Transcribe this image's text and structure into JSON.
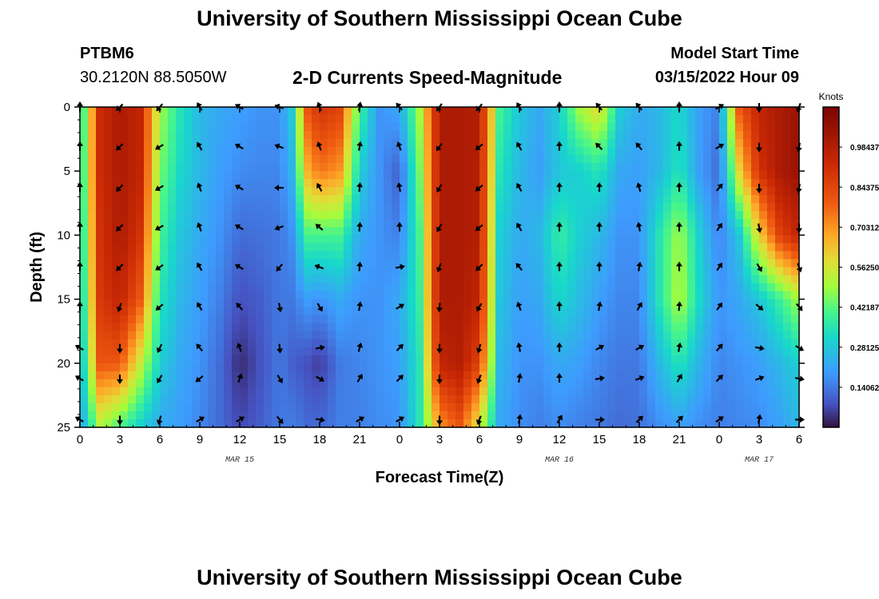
{
  "header": {
    "title": "University of Southern Mississippi Ocean Cube",
    "station_id": "PTBM6",
    "coords": "30.2120N  88.5050W",
    "chart_title": "2-D Currents Speed-Magnitude",
    "model_label": "Model Start Time",
    "model_time": "03/15/2022 Hour 09"
  },
  "footer": {
    "title": "University of Southern Mississippi Ocean Cube"
  },
  "chart_data": {
    "type": "heatmap",
    "title": "2-D Currents Speed-Magnitude",
    "xlabel": "Forecast Time(Z)",
    "ylabel": "Depth (ft)",
    "x_hours_range": [
      0,
      54
    ],
    "xlim_hours": [
      0,
      54
    ],
    "x_ticks": [
      {
        "h": 0,
        "label": "0"
      },
      {
        "h": 3,
        "label": "3"
      },
      {
        "h": 6,
        "label": "6"
      },
      {
        "h": 9,
        "label": "9"
      },
      {
        "h": 12,
        "label": "12"
      },
      {
        "h": 15,
        "label": "15"
      },
      {
        "h": 18,
        "label": "18"
      },
      {
        "h": 21,
        "label": "21"
      },
      {
        "h": 24,
        "label": "0"
      },
      {
        "h": 27,
        "label": "3"
      },
      {
        "h": 30,
        "label": "6"
      },
      {
        "h": 33,
        "label": "9"
      },
      {
        "h": 36,
        "label": "12"
      },
      {
        "h": 39,
        "label": "15"
      },
      {
        "h": 42,
        "label": "18"
      },
      {
        "h": 45,
        "label": "21"
      },
      {
        "h": 48,
        "label": "0"
      },
      {
        "h": 51,
        "label": "3"
      },
      {
        "h": 54,
        "label": "6"
      }
    ],
    "date_labels": [
      {
        "h": 12,
        "label": "MAR 15"
      },
      {
        "h": 36,
        "label": "MAR 16"
      },
      {
        "h": 51,
        "label": "MAR 17"
      }
    ],
    "ylim_ft": [
      0,
      25
    ],
    "y_ticks": [
      {
        "ft": 0,
        "label": "0"
      },
      {
        "ft": 5,
        "label": "5"
      },
      {
        "ft": 10,
        "label": "10"
      },
      {
        "ft": 15,
        "label": "15"
      },
      {
        "ft": 20,
        "label": "20"
      },
      {
        "ft": 25,
        "label": "25"
      }
    ],
    "colorbar": {
      "title": "Knots",
      "min": 0,
      "max": 1.125,
      "labels": [
        "0.98437",
        "0.84375",
        "0.70312",
        "0.56250",
        "0.42187",
        "0.28125",
        "0.14062"
      ],
      "label_values": [
        0.98437,
        0.84375,
        0.70312,
        0.5625,
        0.42187,
        0.28125,
        0.14062
      ]
    },
    "profiles": [
      {
        "h": 0.0,
        "speeds": [
          0.3,
          0.3,
          0.28,
          0.25,
          0.22,
          0.2
        ]
      },
      {
        "h": 1.5,
        "speeds": [
          0.92,
          0.92,
          0.9,
          0.88,
          0.8,
          0.5
        ]
      },
      {
        "h": 3.0,
        "speeds": [
          1.0,
          1.0,
          1.0,
          0.95,
          0.8,
          0.4
        ]
      },
      {
        "h": 4.5,
        "speeds": [
          0.95,
          0.95,
          0.9,
          0.8,
          0.55,
          0.3
        ]
      },
      {
        "h": 6.0,
        "speeds": [
          0.5,
          0.45,
          0.4,
          0.35,
          0.3,
          0.22
        ]
      },
      {
        "h": 7.5,
        "speeds": [
          0.35,
          0.32,
          0.28,
          0.25,
          0.22,
          0.2
        ]
      },
      {
        "h": 9.0,
        "speeds": [
          0.25,
          0.25,
          0.22,
          0.2,
          0.18,
          0.16
        ]
      },
      {
        "h": 10.5,
        "speeds": [
          0.22,
          0.2,
          0.18,
          0.15,
          0.12,
          0.12
        ]
      },
      {
        "h": 12.0,
        "speeds": [
          0.2,
          0.17,
          0.12,
          0.08,
          0.03,
          0.07
        ]
      },
      {
        "h": 13.5,
        "speeds": [
          0.18,
          0.16,
          0.13,
          0.1,
          0.08,
          0.1
        ]
      },
      {
        "h": 15.0,
        "speeds": [
          0.18,
          0.16,
          0.14,
          0.14,
          0.14,
          0.14
        ]
      },
      {
        "h": 16.0,
        "speeds": [
          0.3,
          0.25,
          0.18,
          0.14,
          0.1,
          0.15
        ]
      },
      {
        "h": 17.0,
        "speeds": [
          0.8,
          0.65,
          0.4,
          0.2,
          0.08,
          0.12
        ]
      },
      {
        "h": 18.0,
        "speeds": [
          0.9,
          0.75,
          0.4,
          0.18,
          0.05,
          0.12
        ]
      },
      {
        "h": 19.5,
        "speeds": [
          0.85,
          0.7,
          0.4,
          0.22,
          0.14,
          0.15
        ]
      },
      {
        "h": 21.0,
        "speeds": [
          0.4,
          0.3,
          0.22,
          0.18,
          0.16,
          0.15
        ]
      },
      {
        "h": 22.5,
        "speeds": [
          0.18,
          0.18,
          0.18,
          0.18,
          0.18,
          0.17
        ]
      },
      {
        "h": 24.0,
        "speeds": [
          0.22,
          0.1,
          0.15,
          0.22,
          0.2,
          0.18
        ]
      },
      {
        "h": 25.5,
        "speeds": [
          0.5,
          0.45,
          0.4,
          0.38,
          0.35,
          0.35
        ]
      },
      {
        "h": 27.0,
        "speeds": [
          1.0,
          1.0,
          1.0,
          1.0,
          0.95,
          0.7
        ]
      },
      {
        "h": 28.5,
        "speeds": [
          1.0,
          1.0,
          1.0,
          1.0,
          0.98,
          0.8
        ]
      },
      {
        "h": 30.0,
        "speeds": [
          0.98,
          0.98,
          0.98,
          0.95,
          0.85,
          0.55
        ]
      },
      {
        "h": 31.5,
        "speeds": [
          0.4,
          0.35,
          0.3,
          0.28,
          0.25,
          0.22
        ]
      },
      {
        "h": 33.0,
        "speeds": [
          0.28,
          0.25,
          0.22,
          0.2,
          0.18,
          0.17
        ]
      },
      {
        "h": 34.5,
        "speeds": [
          0.22,
          0.2,
          0.25,
          0.22,
          0.18,
          0.15
        ]
      },
      {
        "h": 36.0,
        "speeds": [
          0.3,
          0.28,
          0.38,
          0.32,
          0.22,
          0.17
        ]
      },
      {
        "h": 37.5,
        "speeds": [
          0.5,
          0.3,
          0.3,
          0.26,
          0.2,
          0.15
        ]
      },
      {
        "h": 39.0,
        "speeds": [
          0.6,
          0.35,
          0.25,
          0.2,
          0.16,
          0.14
        ]
      },
      {
        "h": 40.5,
        "speeds": [
          0.3,
          0.22,
          0.18,
          0.16,
          0.14,
          0.12
        ]
      },
      {
        "h": 42.0,
        "speeds": [
          0.22,
          0.2,
          0.18,
          0.16,
          0.14,
          0.13
        ]
      },
      {
        "h": 43.5,
        "speeds": [
          0.25,
          0.25,
          0.35,
          0.35,
          0.25,
          0.17
        ]
      },
      {
        "h": 45.0,
        "speeds": [
          0.32,
          0.35,
          0.5,
          0.52,
          0.35,
          0.2
        ]
      },
      {
        "h": 46.5,
        "speeds": [
          0.2,
          0.2,
          0.3,
          0.32,
          0.24,
          0.17
        ]
      },
      {
        "h": 48.0,
        "speeds": [
          0.15,
          0.12,
          0.15,
          0.18,
          0.16,
          0.15
        ]
      },
      {
        "h": 49.5,
        "speeds": [
          0.8,
          0.6,
          0.28,
          0.22,
          0.18,
          0.16
        ]
      },
      {
        "h": 51.0,
        "speeds": [
          0.95,
          0.9,
          0.6,
          0.28,
          0.2,
          0.17
        ]
      },
      {
        "h": 52.5,
        "speeds": [
          1.0,
          1.0,
          0.85,
          0.38,
          0.25,
          0.2
        ]
      },
      {
        "h": 54.0,
        "speeds": [
          1.05,
          1.05,
          0.95,
          0.5,
          0.3,
          0.25
        ]
      }
    ],
    "arrow_depths_ft": [
      0,
      3.1,
      6.3,
      9.4,
      12.5,
      15.6,
      18.8,
      21.2,
      24.4
    ],
    "arrows": [
      {
        "h": 0,
        "dirs": [
          0,
          0,
          0,
          0,
          0,
          0,
          300,
          300,
          300
        ]
      },
      {
        "h": 3,
        "dirs": [
          225,
          225,
          225,
          225,
          225,
          200,
          180,
          180,
          180
        ]
      },
      {
        "h": 6,
        "dirs": [
          220,
          240,
          240,
          240,
          235,
          230,
          205,
          210,
          195
        ]
      },
      {
        "h": 9,
        "dirs": [
          330,
          330,
          340,
          340,
          330,
          330,
          320,
          230,
          60
        ]
      },
      {
        "h": 12,
        "dirs": [
          300,
          300,
          300,
          300,
          300,
          320,
          340,
          20,
          60
        ]
      },
      {
        "h": 15,
        "dirs": [
          290,
          290,
          270,
          250,
          220,
          170,
          175,
          150,
          140
        ]
      },
      {
        "h": 18,
        "dirs": [
          340,
          340,
          330,
          310,
          290,
          150,
          80,
          120,
          100
        ]
      },
      {
        "h": 21,
        "dirs": [
          10,
          10,
          5,
          5,
          5,
          10,
          15,
          30,
          60
        ]
      },
      {
        "h": 24,
        "dirs": [
          320,
          340,
          350,
          0,
          80,
          60,
          45,
          45,
          60
        ]
      },
      {
        "h": 27,
        "dirs": [
          215,
          215,
          210,
          210,
          200,
          185,
          180,
          180,
          180
        ]
      },
      {
        "h": 30,
        "dirs": [
          220,
          230,
          230,
          230,
          225,
          210,
          195,
          200,
          200
        ]
      },
      {
        "h": 33,
        "dirs": [
          330,
          330,
          330,
          330,
          320,
          340,
          350,
          10,
          10
        ]
      },
      {
        "h": 36,
        "dirs": [
          0,
          0,
          0,
          0,
          0,
          0,
          0,
          0,
          30
        ]
      },
      {
        "h": 39,
        "dirs": [
          320,
          315,
          0,
          0,
          0,
          10,
          60,
          80,
          90
        ]
      },
      {
        "h": 42,
        "dirs": [
          320,
          320,
          345,
          350,
          10,
          30,
          60,
          70,
          45
        ]
      },
      {
        "h": 45,
        "dirs": [
          0,
          0,
          0,
          0,
          0,
          5,
          10,
          30,
          45
        ]
      },
      {
        "h": 48,
        "dirs": [
          60,
          60,
          40,
          35,
          35,
          35,
          40,
          45,
          55
        ]
      },
      {
        "h": 51,
        "dirs": [
          180,
          180,
          180,
          170,
          150,
          130,
          100,
          70,
          10
        ]
      },
      {
        "h": 54,
        "dirs": [
          200,
          190,
          190,
          180,
          160,
          140,
          120,
          100,
          90
        ]
      }
    ]
  }
}
